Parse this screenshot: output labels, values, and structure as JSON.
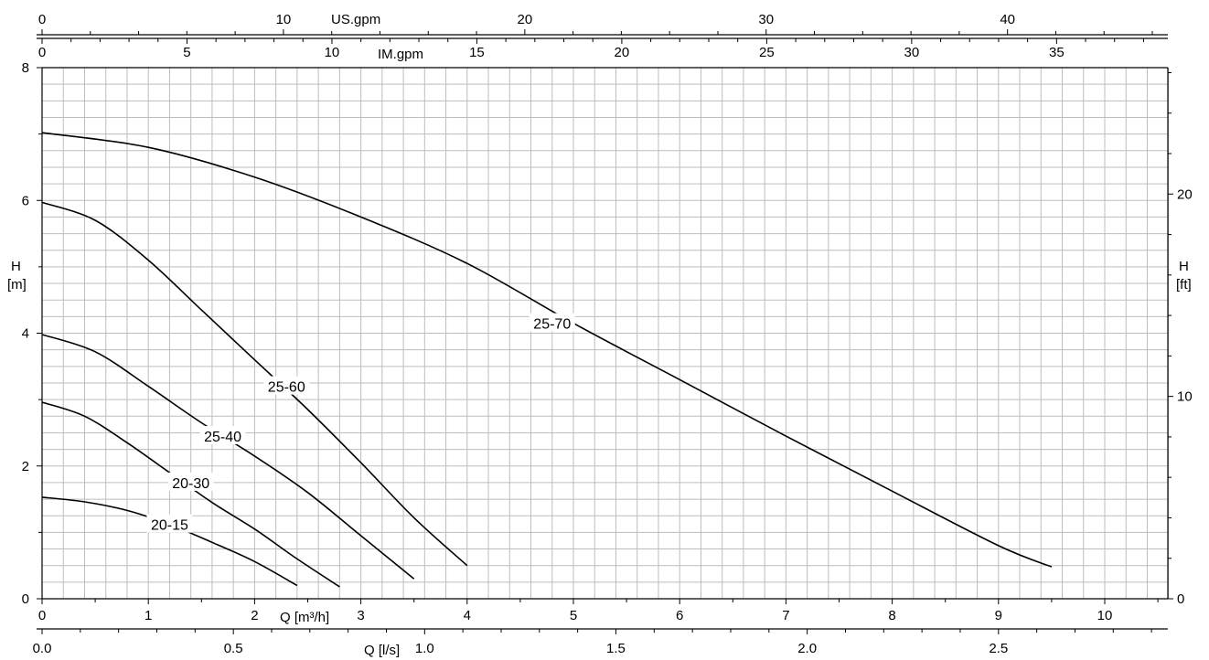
{
  "chart_data": {
    "type": "line",
    "title": "",
    "xlabel": "Q [m³/h]",
    "ylabel": "H\n[m]",
    "xlim": [
      0,
      10.6
    ],
    "ylim": [
      0,
      8
    ],
    "grid": true,
    "legend": "none",
    "x_ticks": [
      0,
      1,
      2,
      3,
      4,
      5,
      6,
      7,
      8,
      9,
      10
    ],
    "y_ticks": [
      0,
      2,
      4,
      6,
      8
    ],
    "secondary_axes": {
      "right": {
        "label_line1": "H",
        "label_line2": "[ft]",
        "ticks": [
          0,
          10,
          20
        ]
      },
      "bottom": {
        "label": "Q [l/s]",
        "ticks": [
          "0.0",
          "0.5",
          "1.0",
          "1.5",
          "2.0",
          "2.5"
        ],
        "tick_values": [
          0,
          0.5,
          1.0,
          1.5,
          2.0,
          2.5
        ]
      },
      "top_im": {
        "label": "IM.gpm",
        "ticks": [
          0,
          5,
          10,
          15,
          20,
          25,
          30,
          35
        ]
      },
      "top_us": {
        "label": "US.gpm",
        "ticks": [
          0,
          10,
          20,
          30,
          40
        ]
      }
    },
    "series": [
      {
        "name": "20-15",
        "points": [
          [
            0,
            1.53
          ],
          [
            0.4,
            1.46
          ],
          [
            0.8,
            1.33
          ],
          [
            1.2,
            1.12
          ],
          [
            1.6,
            0.85
          ],
          [
            2.0,
            0.56
          ],
          [
            2.4,
            0.2
          ]
        ]
      },
      {
        "name": "20-30",
        "points": [
          [
            0,
            2.96
          ],
          [
            0.4,
            2.75
          ],
          [
            0.8,
            2.35
          ],
          [
            1.2,
            1.9
          ],
          [
            1.6,
            1.45
          ],
          [
            2.0,
            1.05
          ],
          [
            2.4,
            0.6
          ],
          [
            2.8,
            0.18
          ]
        ]
      },
      {
        "name": "25-40",
        "points": [
          [
            0,
            3.98
          ],
          [
            0.5,
            3.72
          ],
          [
            1.0,
            3.2
          ],
          [
            1.5,
            2.65
          ],
          [
            2.0,
            2.15
          ],
          [
            2.5,
            1.6
          ],
          [
            3.0,
            0.95
          ],
          [
            3.5,
            0.3
          ]
        ]
      },
      {
        "name": "25-60",
        "points": [
          [
            0,
            5.97
          ],
          [
            0.5,
            5.7
          ],
          [
            1.0,
            5.1
          ],
          [
            1.5,
            4.35
          ],
          [
            2.0,
            3.6
          ],
          [
            2.5,
            2.85
          ],
          [
            3.0,
            2.05
          ],
          [
            3.5,
            1.22
          ],
          [
            4.0,
            0.5
          ]
        ]
      },
      {
        "name": "25-70",
        "points": [
          [
            0,
            7.02
          ],
          [
            1.0,
            6.8
          ],
          [
            2.0,
            6.35
          ],
          [
            3.0,
            5.75
          ],
          [
            4.0,
            5.05
          ],
          [
            5.0,
            4.15
          ],
          [
            6.0,
            3.3
          ],
          [
            7.0,
            2.45
          ],
          [
            8.0,
            1.62
          ],
          [
            9.0,
            0.8
          ],
          [
            9.5,
            0.48
          ]
        ]
      }
    ],
    "labels": [
      {
        "text": "20-15",
        "x": 1.2,
        "y": 1.12
      },
      {
        "text": "20-30",
        "x": 1.4,
        "y": 1.75
      },
      {
        "text": "25-40",
        "x": 1.7,
        "y": 2.45
      },
      {
        "text": "25-60",
        "x": 2.3,
        "y": 3.2
      },
      {
        "text": "25-70",
        "x": 4.8,
        "y": 4.15
      }
    ]
  }
}
